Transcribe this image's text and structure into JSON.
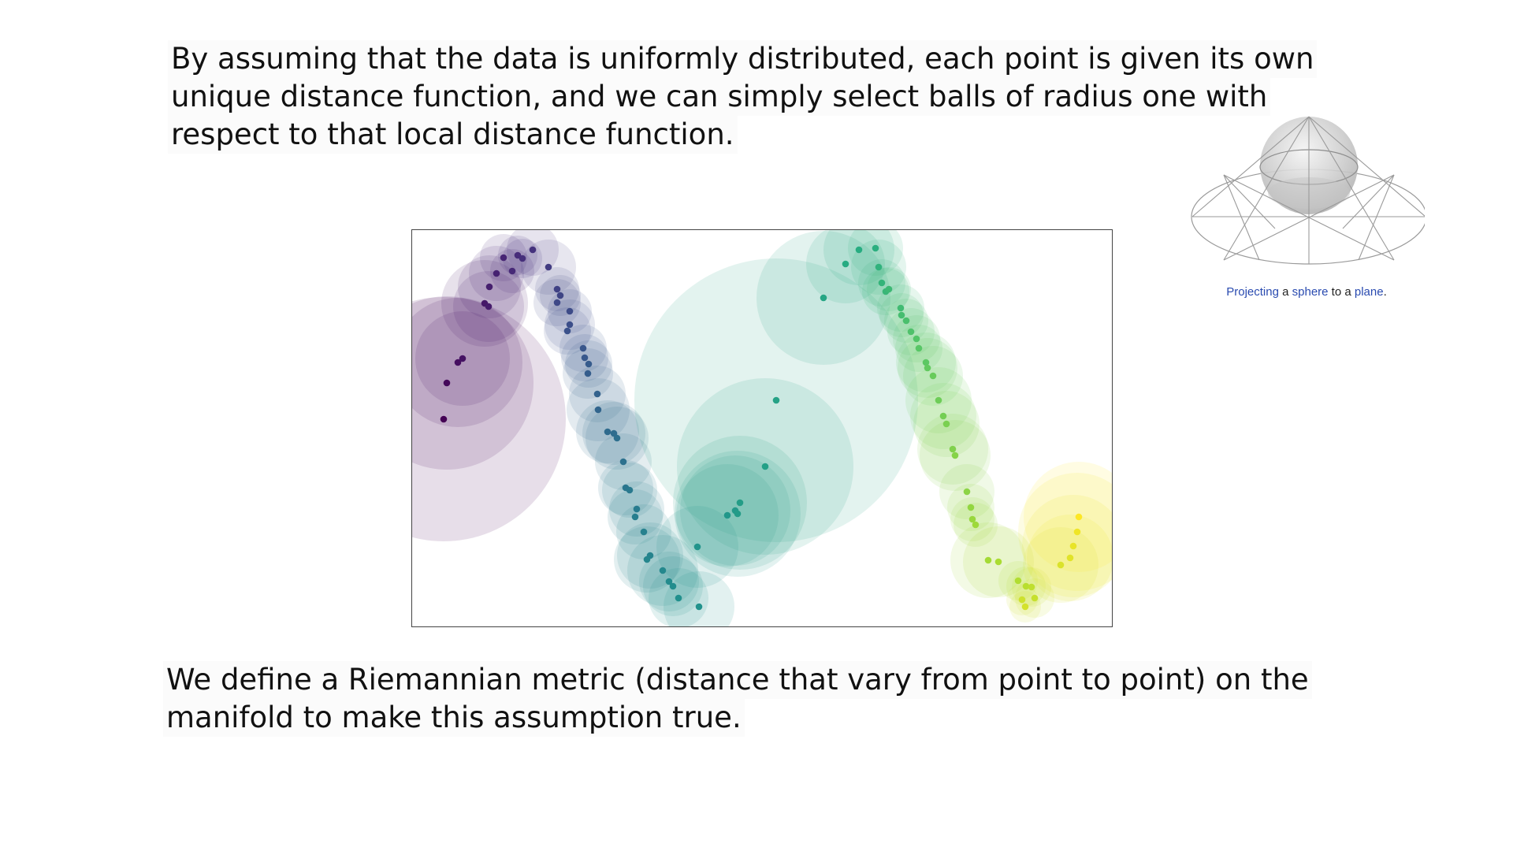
{
  "slide": {
    "paragraph_top": [
      "By assuming that the data is uniformly distributed, each point is given its own",
      "unique distance function, and we can simply select balls of radius one with",
      "respect to that local distance function."
    ],
    "paragraph_bottom": [
      "We define a Riemannian metric (distance that vary from point to point) on the",
      "manifold to make this assumption true."
    ]
  },
  "figure": {
    "caption_word1": "Projecting",
    "caption_word2": " a ",
    "caption_word3": "sphere",
    "caption_word4": " to a ",
    "caption_word5": "plane",
    "caption_word6": ".",
    "link_color": "#2a4bb0"
  },
  "chart_data": {
    "type": "scatter",
    "description_colormap": "viridis",
    "xlim": [
      0,
      888
    ],
    "ylim": [
      0,
      503
    ],
    "points": [
      {
        "x": 40,
        "y": 240,
        "r": 155,
        "c": 0.0
      },
      {
        "x": 44,
        "y": 194,
        "r": 110,
        "c": 0.02
      },
      {
        "x": 58,
        "y": 168,
        "r": 82,
        "c": 0.04
      },
      {
        "x": 64,
        "y": 163,
        "r": 60,
        "c": 0.05
      },
      {
        "x": 92,
        "y": 93,
        "r": 55,
        "c": 0.07
      },
      {
        "x": 97,
        "y": 97,
        "r": 45,
        "c": 0.08
      },
      {
        "x": 98,
        "y": 72,
        "r": 40,
        "c": 0.09
      },
      {
        "x": 107,
        "y": 55,
        "r": 35,
        "c": 0.1
      },
      {
        "x": 116,
        "y": 35,
        "r": 30,
        "c": 0.11
      },
      {
        "x": 127,
        "y": 52,
        "r": 28,
        "c": 0.12
      },
      {
        "x": 134,
        "y": 32,
        "r": 25,
        "c": 0.13
      },
      {
        "x": 140,
        "y": 36,
        "r": 25,
        "c": 0.14
      },
      {
        "x": 153,
        "y": 25,
        "r": 33,
        "c": 0.15
      },
      {
        "x": 173,
        "y": 47,
        "r": 35,
        "c": 0.18
      },
      {
        "x": 184,
        "y": 75,
        "r": 28,
        "c": 0.2
      },
      {
        "x": 188,
        "y": 83,
        "r": 26,
        "c": 0.21
      },
      {
        "x": 184,
        "y": 92,
        "r": 30,
        "c": 0.22
      },
      {
        "x": 200,
        "y": 103,
        "r": 28,
        "c": 0.23
      },
      {
        "x": 200,
        "y": 120,
        "r": 32,
        "c": 0.24
      },
      {
        "x": 197,
        "y": 128,
        "r": 30,
        "c": 0.25
      },
      {
        "x": 217,
        "y": 150,
        "r": 30,
        "c": 0.27
      },
      {
        "x": 219,
        "y": 162,
        "r": 30,
        "c": 0.28
      },
      {
        "x": 224,
        "y": 170,
        "r": 30,
        "c": 0.29
      },
      {
        "x": 223,
        "y": 182,
        "r": 32,
        "c": 0.3
      },
      {
        "x": 235,
        "y": 208,
        "r": 36,
        "c": 0.32
      },
      {
        "x": 236,
        "y": 228,
        "r": 40,
        "c": 0.33
      },
      {
        "x": 248,
        "y": 256,
        "r": 40,
        "c": 0.35
      },
      {
        "x": 256,
        "y": 258,
        "r": 40,
        "c": 0.36
      },
      {
        "x": 260,
        "y": 264,
        "r": 40,
        "c": 0.37
      },
      {
        "x": 268,
        "y": 294,
        "r": 36,
        "c": 0.38
      },
      {
        "x": 271,
        "y": 327,
        "r": 35,
        "c": 0.4
      },
      {
        "x": 276,
        "y": 330,
        "r": 35,
        "c": 0.41
      },
      {
        "x": 285,
        "y": 354,
        "r": 35,
        "c": 0.42
      },
      {
        "x": 283,
        "y": 364,
        "r": 35,
        "c": 0.43
      },
      {
        "x": 294,
        "y": 383,
        "r": 35,
        "c": 0.44
      },
      {
        "x": 302,
        "y": 413,
        "r": 42,
        "c": 0.45
      },
      {
        "x": 298,
        "y": 418,
        "r": 42,
        "c": 0.46
      },
      {
        "x": 318,
        "y": 432,
        "r": 45,
        "c": 0.47
      },
      {
        "x": 326,
        "y": 446,
        "r": 38,
        "c": 0.48
      },
      {
        "x": 331,
        "y": 452,
        "r": 38,
        "c": 0.49
      },
      {
        "x": 338,
        "y": 467,
        "r": 38,
        "c": 0.5
      },
      {
        "x": 364,
        "y": 478,
        "r": 45,
        "c": 0.51
      },
      {
        "x": 362,
        "y": 402,
        "r": 52,
        "c": 0.52
      },
      {
        "x": 400,
        "y": 362,
        "r": 65,
        "c": 0.53
      },
      {
        "x": 410,
        "y": 356,
        "r": 70,
        "c": 0.54
      },
      {
        "x": 413,
        "y": 360,
        "r": 80,
        "c": 0.55
      },
      {
        "x": 416,
        "y": 346,
        "r": 85,
        "c": 0.56
      },
      {
        "x": 448,
        "y": 300,
        "r": 112,
        "c": 0.57
      },
      {
        "x": 462,
        "y": 216,
        "r": 180,
        "c": 0.58
      },
      {
        "x": 522,
        "y": 86,
        "r": 85,
        "c": 0.6
      },
      {
        "x": 550,
        "y": 43,
        "r": 50,
        "c": 0.62
      },
      {
        "x": 567,
        "y": 25,
        "r": 45,
        "c": 0.63
      },
      {
        "x": 588,
        "y": 23,
        "r": 35,
        "c": 0.64
      },
      {
        "x": 592,
        "y": 47,
        "r": 35,
        "c": 0.65
      },
      {
        "x": 596,
        "y": 67,
        "r": 30,
        "c": 0.66
      },
      {
        "x": 601,
        "y": 78,
        "r": 30,
        "c": 0.67
      },
      {
        "x": 605,
        "y": 75,
        "r": 28,
        "c": 0.68
      },
      {
        "x": 620,
        "y": 99,
        "r": 30,
        "c": 0.69
      },
      {
        "x": 621,
        "y": 108,
        "r": 28,
        "c": 0.7
      },
      {
        "x": 627,
        "y": 115,
        "r": 28,
        "c": 0.71
      },
      {
        "x": 633,
        "y": 129,
        "r": 30,
        "c": 0.72
      },
      {
        "x": 640,
        "y": 138,
        "r": 30,
        "c": 0.73
      },
      {
        "x": 643,
        "y": 150,
        "r": 30,
        "c": 0.74
      },
      {
        "x": 652,
        "y": 168,
        "r": 38,
        "c": 0.75
      },
      {
        "x": 654,
        "y": 175,
        "r": 38,
        "c": 0.76
      },
      {
        "x": 661,
        "y": 185,
        "r": 38,
        "c": 0.77
      },
      {
        "x": 668,
        "y": 216,
        "r": 42,
        "c": 0.78
      },
      {
        "x": 674,
        "y": 236,
        "r": 42,
        "c": 0.79
      },
      {
        "x": 678,
        "y": 246,
        "r": 42,
        "c": 0.8
      },
      {
        "x": 686,
        "y": 278,
        "r": 45,
        "c": 0.81
      },
      {
        "x": 689,
        "y": 286,
        "r": 45,
        "c": 0.82
      },
      {
        "x": 704,
        "y": 332,
        "r": 35,
        "c": 0.83
      },
      {
        "x": 709,
        "y": 352,
        "r": 30,
        "c": 0.84
      },
      {
        "x": 711,
        "y": 367,
        "r": 28,
        "c": 0.85
      },
      {
        "x": 715,
        "y": 374,
        "r": 28,
        "c": 0.86
      },
      {
        "x": 731,
        "y": 419,
        "r": 48,
        "c": 0.87
      },
      {
        "x": 744,
        "y": 421,
        "r": 45,
        "c": 0.88
      },
      {
        "x": 769,
        "y": 445,
        "r": 25,
        "c": 0.89
      },
      {
        "x": 779,
        "y": 452,
        "r": 25,
        "c": 0.9
      },
      {
        "x": 786,
        "y": 453,
        "r": 25,
        "c": 0.91
      },
      {
        "x": 790,
        "y": 467,
        "r": 25,
        "c": 0.92
      },
      {
        "x": 774,
        "y": 469,
        "r": 20,
        "c": 0.93
      },
      {
        "x": 778,
        "y": 478,
        "r": 20,
        "c": 0.94
      },
      {
        "x": 823,
        "y": 425,
        "r": 48,
        "c": 0.95
      },
      {
        "x": 835,
        "y": 416,
        "r": 55,
        "c": 0.96
      },
      {
        "x": 839,
        "y": 401,
        "r": 65,
        "c": 0.97
      },
      {
        "x": 844,
        "y": 383,
        "r": 75,
        "c": 0.98
      },
      {
        "x": 846,
        "y": 364,
        "r": 70,
        "c": 1.0
      }
    ]
  }
}
